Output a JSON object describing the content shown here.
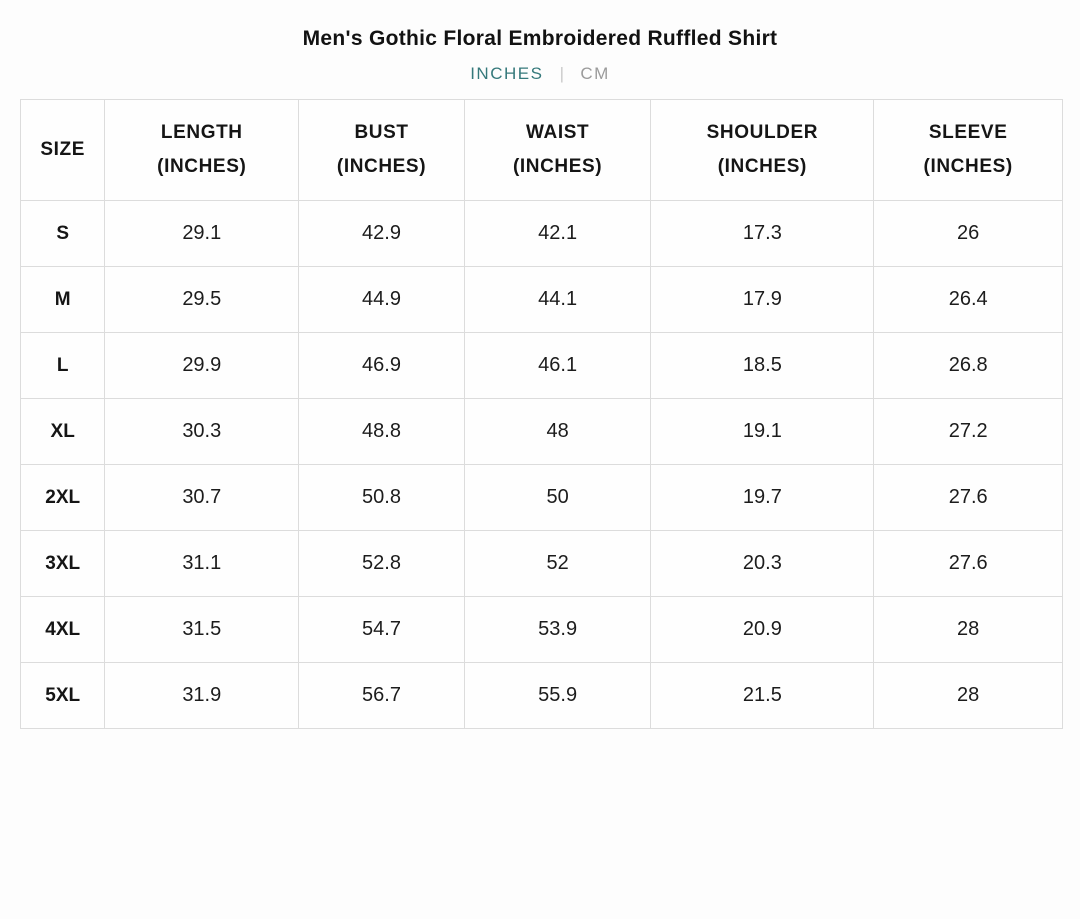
{
  "header": {
    "title": "Men's Gothic Floral Embroidered Ruffled Shirt",
    "unit_toggle": {
      "options": [
        {
          "label": "INCHES",
          "active": true
        },
        {
          "label": "CM",
          "active": false
        }
      ],
      "separator": "|",
      "active_color": "#35797b",
      "inactive_color": "#9b9b9b"
    }
  },
  "table": {
    "border_color": "#dcdcdc",
    "columns": [
      {
        "label": "SIZE",
        "unit": ""
      },
      {
        "label": "LENGTH",
        "unit": "(INCHES)"
      },
      {
        "label": "BUST",
        "unit": "(INCHES)"
      },
      {
        "label": "WAIST",
        "unit": "(INCHES)"
      },
      {
        "label": "SHOULDER",
        "unit": "(INCHES)"
      },
      {
        "label": "SLEEVE",
        "unit": "(INCHES)"
      }
    ],
    "column_widths_pct": [
      8.1,
      18.6,
      15.9,
      17.9,
      21.4,
      18.1
    ],
    "rows": [
      {
        "size": "S",
        "values": [
          "29.1",
          "42.9",
          "42.1",
          "17.3",
          "26"
        ]
      },
      {
        "size": "M",
        "values": [
          "29.5",
          "44.9",
          "44.1",
          "17.9",
          "26.4"
        ]
      },
      {
        "size": "L",
        "values": [
          "29.9",
          "46.9",
          "46.1",
          "18.5",
          "26.8"
        ]
      },
      {
        "size": "XL",
        "values": [
          "30.3",
          "48.8",
          "48",
          "19.1",
          "27.2"
        ]
      },
      {
        "size": "2XL",
        "values": [
          "30.7",
          "50.8",
          "50",
          "19.7",
          "27.6"
        ]
      },
      {
        "size": "3XL",
        "values": [
          "31.1",
          "52.8",
          "52",
          "20.3",
          "27.6"
        ]
      },
      {
        "size": "4XL",
        "values": [
          "31.5",
          "54.7",
          "53.9",
          "20.9",
          "28"
        ]
      },
      {
        "size": "5XL",
        "values": [
          "31.9",
          "56.7",
          "55.9",
          "21.5",
          "28"
        ]
      }
    ]
  }
}
